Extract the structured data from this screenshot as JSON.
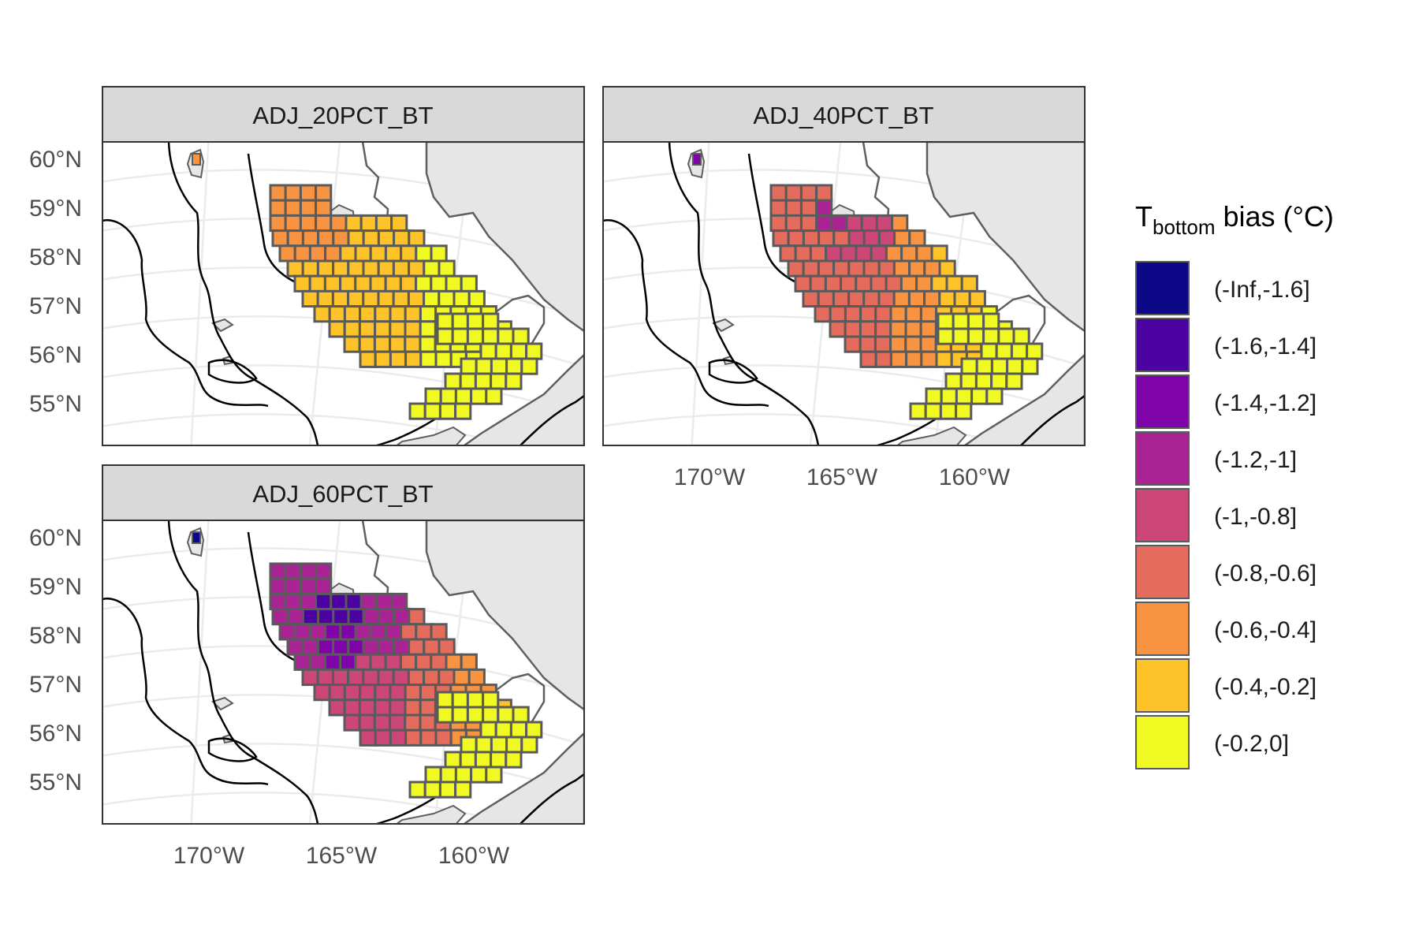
{
  "figure": {
    "panels": [
      {
        "id": "p20",
        "title": "ADJ_20PCT_BT"
      },
      {
        "id": "p40",
        "title": "ADJ_40PCT_BT"
      },
      {
        "id": "p60",
        "title": "ADJ_60PCT_BT"
      }
    ],
    "y_axis_labels": [
      "60°N",
      "59°N",
      "58°N",
      "57°N",
      "56°N",
      "55°N"
    ],
    "x_axis_labels": [
      "170°W",
      "165°W",
      "160°W"
    ],
    "legend": {
      "title_main": "T",
      "title_sub": "bottom",
      "title_rest": " bias (°C)",
      "bins": [
        {
          "label": "(-Inf,-1.6]",
          "color": "#0d0887"
        },
        {
          "label": "(-1.6,-1.4]",
          "color": "#4c02a1"
        },
        {
          "label": "(-1.4,-1.2]",
          "color": "#7e03a8"
        },
        {
          "label": "(-1.2,-1]",
          "color": "#a92395"
        },
        {
          "label": "(-1,-0.8]",
          "color": "#cc4778"
        },
        {
          "label": "(-0.8,-0.6]",
          "color": "#e56b5d"
        },
        {
          "label": "(-0.6,-0.4]",
          "color": "#f89441"
        },
        {
          "label": "(-0.4,-0.2]",
          "color": "#fdc328"
        },
        {
          "label": "(-0.2,0]",
          "color": "#f0f921"
        }
      ]
    },
    "colors": {
      "land": "#e6e6e6",
      "strip_fill": "#d9d9d9",
      "cell_border": "#5a5a5a",
      "contour": "#000000",
      "coast": "#5f5f5f",
      "graticule": "#ebebeb"
    }
  },
  "chart_data": {
    "type": "heatmap",
    "description_units": "Bottom temperature bias bins per survey grid cell",
    "panels": [
      {
        "title": "ADJ_20PCT_BT",
        "dominant_bins": [
          "(-0.6,-0.4]",
          "(-0.4,-0.2]",
          "(-0.2,0]"
        ]
      },
      {
        "title": "ADJ_40PCT_BT",
        "dominant_bins": [
          "(-1.2,-1]",
          "(-1,-0.8]",
          "(-0.8,-0.6]",
          "(-0.6,-0.4]",
          "(-0.4,-0.2]",
          "(-0.2,0]"
        ]
      },
      {
        "title": "ADJ_60PCT_BT",
        "dominant_bins": [
          "(-1.6,-1.4]",
          "(-1.4,-1.2]",
          "(-1.2,-1]",
          "(-1,-0.8]",
          "(-0.8,-0.6]",
          "(-0.6,-0.4]",
          "(-0.4,-0.2]",
          "(-0.2,0]"
        ]
      }
    ],
    "xlabel": "",
    "ylabel": "",
    "lat_ticks": [
      60,
      59,
      58,
      57,
      56,
      55
    ],
    "lon_ticks": [
      -170,
      -165,
      -160
    ]
  }
}
